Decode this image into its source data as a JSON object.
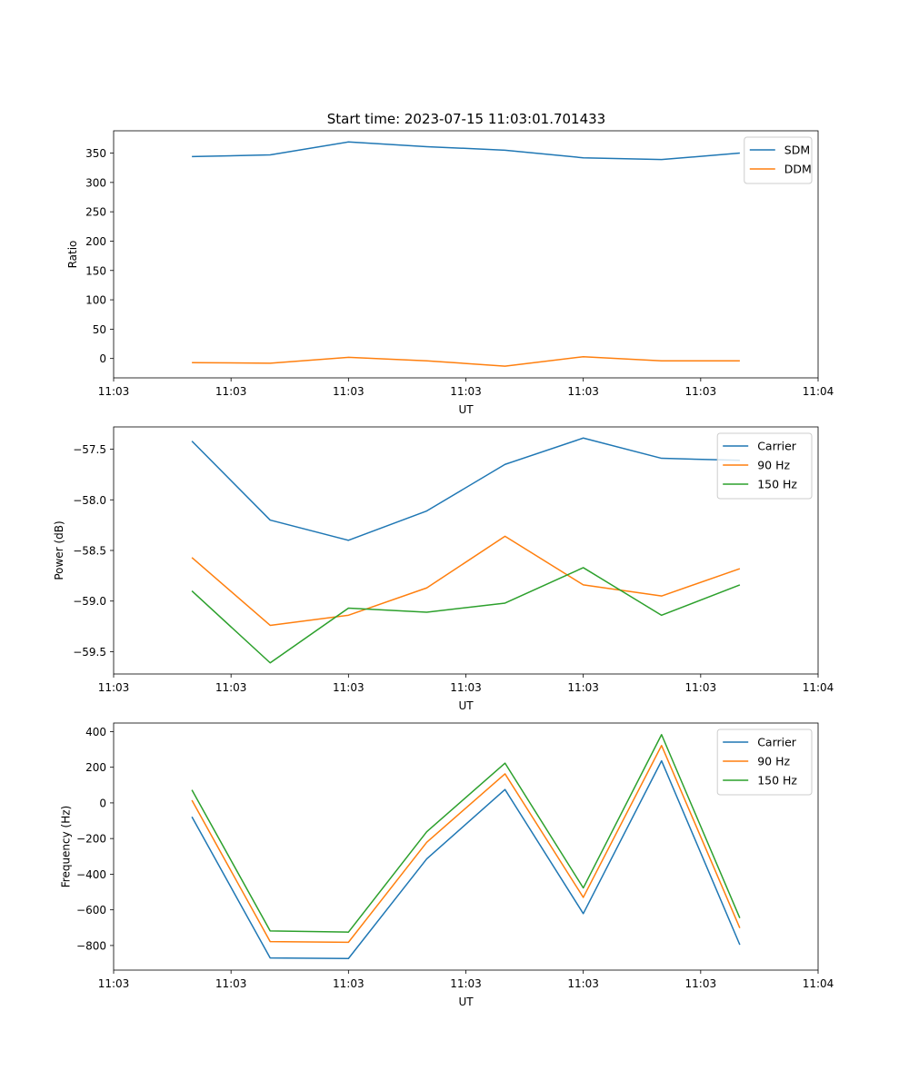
{
  "figure_title": "Start time: 2023-07-15 11:03:01.701433",
  "chart_data": [
    {
      "type": "line",
      "title": "Start time: 2023-07-15 11:03:01.701433",
      "xlabel": "UT",
      "ylabel": "Ratio",
      "x": [
        1,
        2,
        3,
        4,
        5,
        6,
        7,
        8
      ],
      "xlim": [
        0,
        9
      ],
      "xticks": [
        0,
        1.5,
        3,
        4.5,
        6,
        7.5,
        9
      ],
      "xtick_labels": [
        "11:03",
        "11:03",
        "11:03",
        "11:03",
        "11:03",
        "11:03",
        "11:04"
      ],
      "ylim": [
        -33,
        388
      ],
      "yticks": [
        0,
        50,
        100,
        150,
        200,
        250,
        300,
        350
      ],
      "ytick_labels": [
        "0",
        "50",
        "100",
        "150",
        "200",
        "250",
        "300",
        "350"
      ],
      "legend_position": "top-right",
      "series": [
        {
          "name": "SDM",
          "color": "#1f77b4",
          "values": [
            344,
            347,
            369,
            361,
            355,
            342,
            339,
            350
          ]
        },
        {
          "name": "DDM",
          "color": "#ff7f0e",
          "values": [
            -7,
            -8,
            2,
            -4,
            -13,
            3,
            -4,
            -4
          ]
        }
      ]
    },
    {
      "type": "line",
      "title": "",
      "xlabel": "UT",
      "ylabel": "Power (dB)",
      "x": [
        1,
        2,
        3,
        4,
        5,
        6,
        7,
        8
      ],
      "xlim": [
        0,
        9
      ],
      "xticks": [
        0,
        1.5,
        3,
        4.5,
        6,
        7.5,
        9
      ],
      "xtick_labels": [
        "11:03",
        "11:03",
        "11:03",
        "11:03",
        "11:03",
        "11:03",
        "11:04"
      ],
      "ylim": [
        -59.72,
        -57.28
      ],
      "yticks": [
        -59.5,
        -59.0,
        -58.5,
        -58.0,
        -57.5
      ],
      "ytick_labels": [
        "−59.5",
        "−59.0",
        "−58.5",
        "−58.0",
        "−57.5"
      ],
      "legend_position": "top-right",
      "series": [
        {
          "name": "Carrier",
          "color": "#1f77b4",
          "values": [
            -57.42,
            -58.2,
            -58.4,
            -58.11,
            -57.65,
            -57.39,
            -57.59,
            -57.61
          ]
        },
        {
          "name": "90 Hz",
          "color": "#ff7f0e",
          "values": [
            -58.57,
            -59.24,
            -59.14,
            -58.87,
            -58.36,
            -58.84,
            -58.95,
            -58.68
          ]
        },
        {
          "name": "150 Hz",
          "color": "#2ca02c",
          "values": [
            -58.9,
            -59.61,
            -59.07,
            -59.11,
            -59.02,
            -58.67,
            -59.14,
            -58.84
          ]
        }
      ]
    },
    {
      "type": "line",
      "title": "",
      "xlabel": "UT",
      "ylabel": "Frequency (Hz)",
      "x": [
        1,
        2,
        3,
        4,
        5,
        6,
        7,
        8
      ],
      "xlim": [
        0,
        9
      ],
      "xticks": [
        0,
        1.5,
        3,
        4.5,
        6,
        7.5,
        9
      ],
      "xtick_labels": [
        "11:03",
        "11:03",
        "11:03",
        "11:03",
        "11:03",
        "11:03",
        "11:04"
      ],
      "ylim": [
        -938,
        448
      ],
      "yticks": [
        -800,
        -600,
        -400,
        -200,
        0,
        200,
        400
      ],
      "ytick_labels": [
        "−800",
        "−600",
        "−400",
        "−200",
        "0",
        "200",
        "400"
      ],
      "legend_position": "top-right",
      "series": [
        {
          "name": "Carrier",
          "color": "#1f77b4",
          "values": [
            -78,
            -870,
            -873,
            -314,
            75,
            -621,
            236,
            -796
          ]
        },
        {
          "name": "90 Hz",
          "color": "#ff7f0e",
          "values": [
            15,
            -778,
            -782,
            -221,
            163,
            -530,
            322,
            -702
          ]
        },
        {
          "name": "150 Hz",
          "color": "#2ca02c",
          "values": [
            73,
            -718,
            -725,
            -162,
            223,
            -477,
            383,
            -646
          ]
        }
      ]
    }
  ]
}
